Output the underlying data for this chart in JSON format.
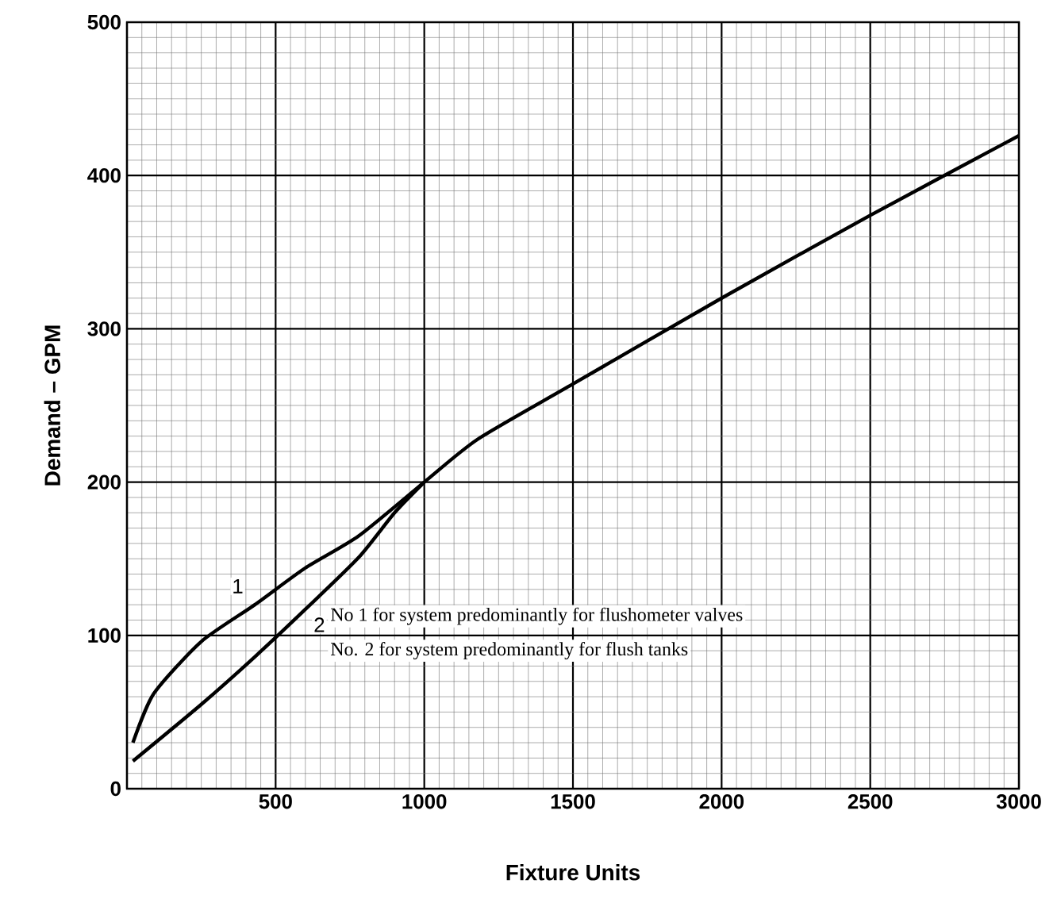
{
  "chart_data": {
    "type": "line",
    "xlabel": "Fixture Units",
    "ylabel": "Demand – GPM",
    "xlim": [
      0,
      3000
    ],
    "ylim": [
      0,
      500
    ],
    "xticks": [
      {
        "value": 0,
        "label": null
      },
      500,
      1000,
      1500,
      2000,
      2500,
      3000
    ],
    "yticks": [
      0,
      100,
      200,
      300,
      400,
      500
    ],
    "grid": true,
    "marker": "none",
    "line_style": "solid",
    "x": [
      20,
      90,
      250,
      430,
      600,
      780,
      1000,
      1180,
      1500,
      2000,
      2500,
      3000
    ],
    "series": [
      {
        "name": "1",
        "color": "#000000",
        "values": [
          30,
          62,
          96,
          120,
          144,
          165,
          200,
          228,
          264,
          320,
          374,
          426
        ]
      },
      {
        "name": "2",
        "color": "#000000",
        "x": [
          20,
          250,
          430,
          600,
          780,
          900,
          1000
        ],
        "values": [
          18,
          55,
          86,
          117,
          151,
          180,
          200
        ]
      }
    ],
    "annotations": [
      "No 1 for system predominantly for flushometer valves",
      "No. 2 for system predominantly for flush tanks"
    ]
  }
}
